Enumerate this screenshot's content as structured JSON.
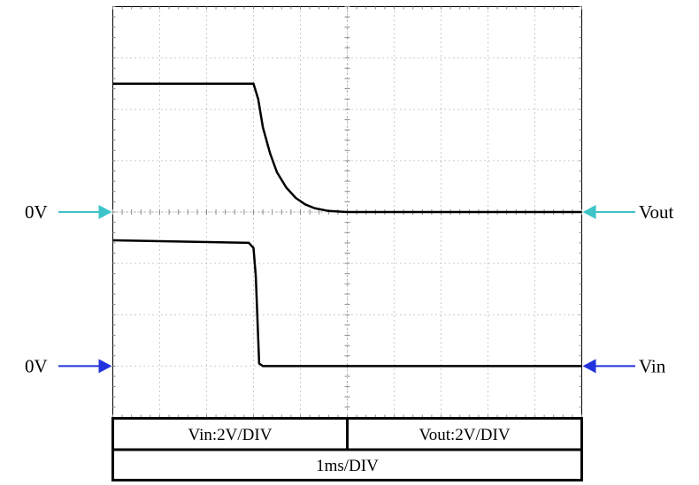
{
  "chart_data": {
    "type": "line",
    "title": "",
    "xlabel": "",
    "ylabel": "",
    "grid": true,
    "x_divisions": 10,
    "y_divisions": 8,
    "x_unit": "ms",
    "x_range_div": [
      0,
      10
    ],
    "series": [
      {
        "name": "Vout",
        "scale_label": "Vout:2V/DIV",
        "zero_marker_label": "0V",
        "trace_color": "#000000",
        "marker_color": "#3ec3c8",
        "x_div": [
          0,
          3.0,
          3.1,
          3.2,
          3.35,
          3.5,
          3.7,
          3.9,
          4.1,
          4.3,
          4.6,
          5.0,
          10
        ],
        "y_volts": [
          5.0,
          5.0,
          4.4,
          3.3,
          2.3,
          1.55,
          0.95,
          0.55,
          0.3,
          0.15,
          0.04,
          0.0,
          0.0
        ]
      },
      {
        "name": "Vin",
        "scale_label": "Vin:2V/DIV",
        "zero_marker_label": "0V",
        "trace_color": "#000000",
        "marker_color": "#2233dd",
        "x_div": [
          0,
          2.9,
          3.0,
          3.05,
          3.12,
          3.2,
          10
        ],
        "y_volts": [
          4.9,
          4.8,
          4.6,
          3.5,
          0.1,
          0.0,
          0.0
        ]
      }
    ],
    "timebase_label": "1ms/DIV"
  }
}
